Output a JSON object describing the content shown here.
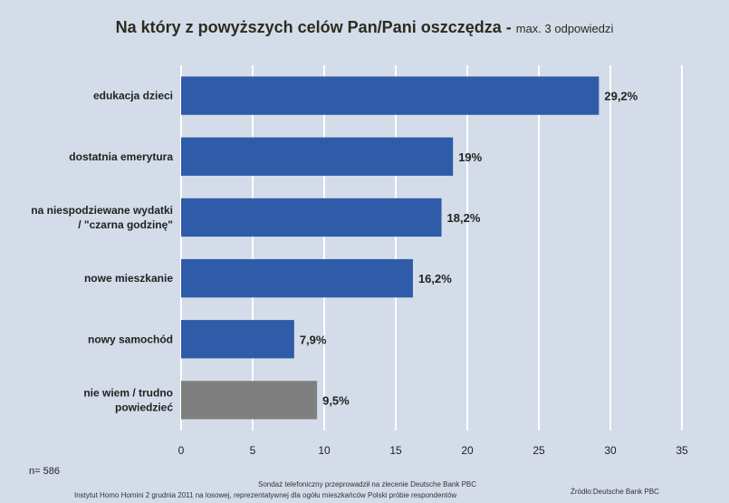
{
  "title": {
    "main": "Na który z powyższych celów Pan/Pani oszczędza",
    "separator": " - ",
    "sub": "max. 3 odpowiedzi"
  },
  "footer": {
    "n": "n= 586",
    "note_line1": "Sondaż telefoniczny przeprowadził na zlecenie Deutsche Bank PBC",
    "note_line2": "Instytut Homo Homini 2 grudnia 2011 na losowej, reprezentatywnej dla ogółu mieszkańców Polski próbie respondentów",
    "source": "Źródło:Deutsche Bank PBC"
  },
  "colors": {
    "background": "#d3dce8",
    "bar_primary": "#2f5ca8",
    "bar_secondary": "#7f7f7f",
    "grid": "#ffffff",
    "text": "#222222"
  },
  "chart_data": {
    "type": "bar",
    "orientation": "horizontal",
    "title": "Na który z powyższych celów Pan/Pani oszczędza - max. 3 odpowiedzi",
    "xlabel": "",
    "ylabel": "",
    "xlim": [
      0,
      35
    ],
    "xticks": [
      0,
      5,
      10,
      15,
      20,
      25,
      30,
      35
    ],
    "grid": true,
    "categories": [
      "edukacja dzieci",
      "dostatnia emerytura",
      "na niespodziewane wydatki / \"czarna godzinę\"",
      "nowe mieszkanie",
      "nowy samochód",
      "nie wiem / trudno powiedzieć"
    ],
    "category_lines": [
      [
        "edukacja dzieci"
      ],
      [
        "dostatnia emerytura"
      ],
      [
        "na niespodziewane wydatki",
        "/ \"czarna godzinę\""
      ],
      [
        "nowe mieszkanie"
      ],
      [
        "nowy samochód"
      ],
      [
        "nie wiem / trudno",
        "powiedzieć"
      ]
    ],
    "values": [
      29.2,
      19,
      18.2,
      16.2,
      7.9,
      9.5
    ],
    "value_labels": [
      "29,2%",
      "19%",
      "18,2%",
      "16,2%",
      "7,9%",
      "9,5%"
    ],
    "bar_colors": [
      "#2f5ca8",
      "#2f5ca8",
      "#2f5ca8",
      "#2f5ca8",
      "#2f5ca8",
      "#7f7f7f"
    ]
  }
}
